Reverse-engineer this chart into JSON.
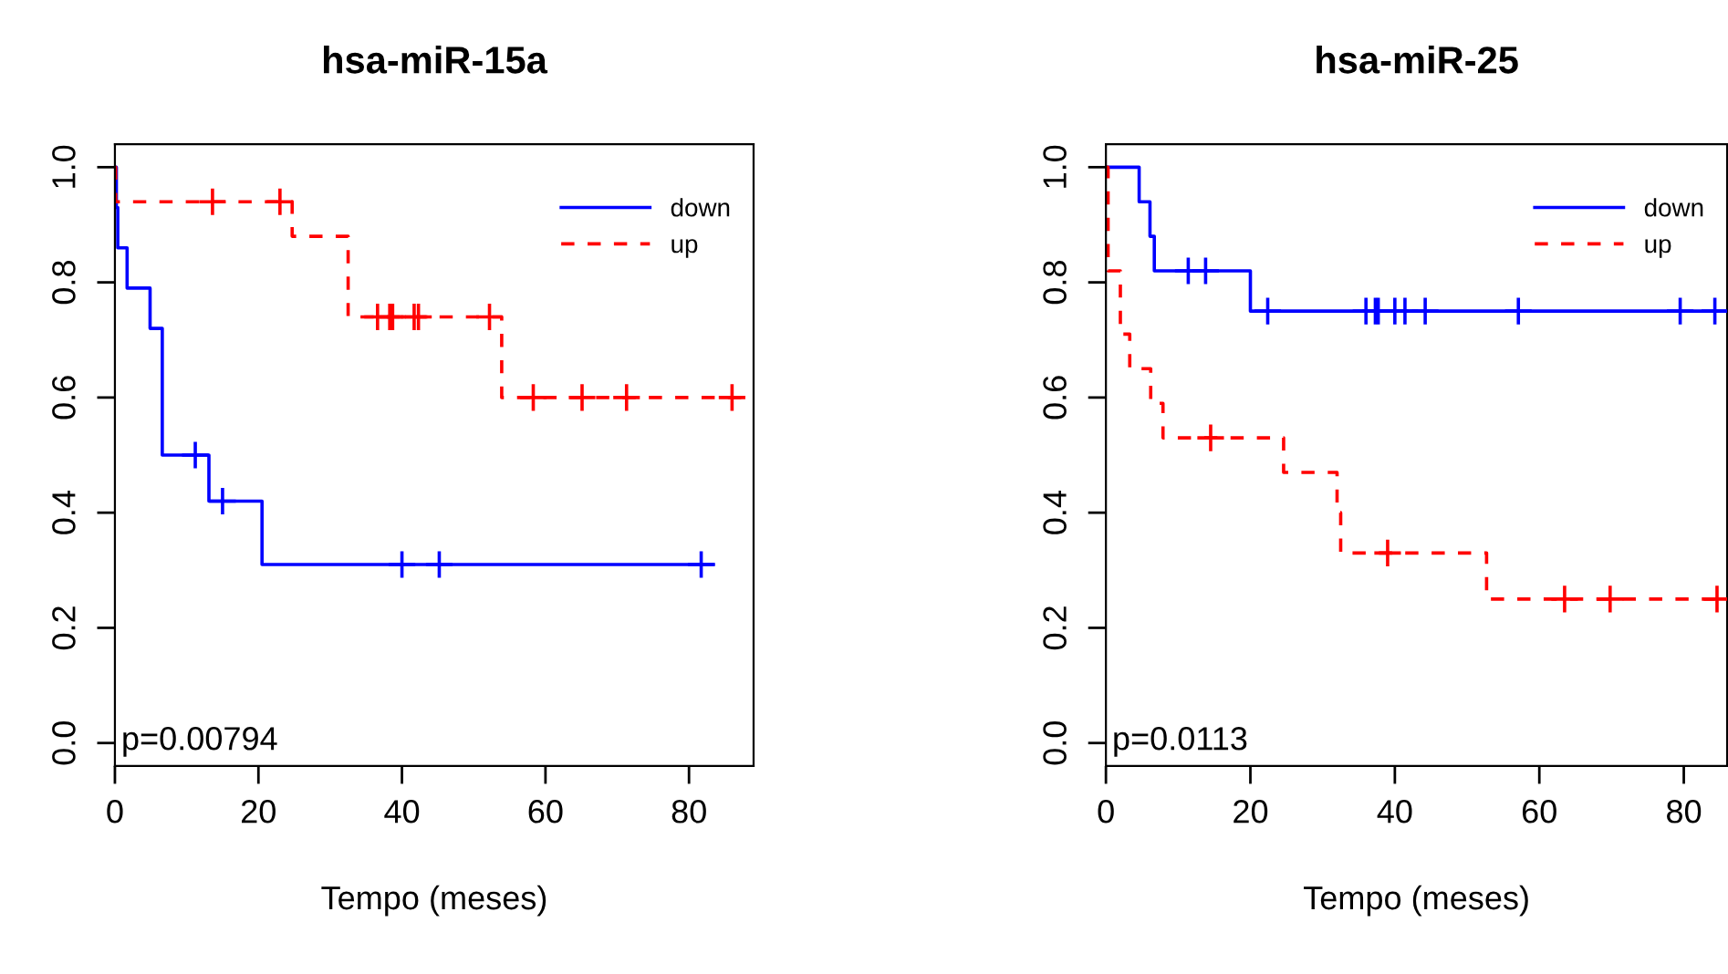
{
  "chart_data": [
    {
      "type": "step",
      "title": "hsa-miR-15a",
      "xlabel": "Tempo (meses)",
      "xlim": [
        0,
        89
      ],
      "ylim": [
        -0.04,
        1.04
      ],
      "xticks": [
        0,
        20,
        40,
        60,
        80
      ],
      "yticks": [
        {
          "value": 0,
          "label": "0.0"
        },
        {
          "value": 0.2,
          "label": "0.2"
        },
        {
          "value": 0.4,
          "label": "0.4"
        },
        {
          "value": 0.6,
          "label": "0.6"
        },
        {
          "value": 0.8,
          "label": "0.8"
        },
        {
          "value": 1,
          "label": "1.0"
        }
      ],
      "legend": "top right",
      "grid": false,
      "annotations": [
        "p=0.00794"
      ],
      "series": [
        {
          "name": "down",
          "color": "#0000ff",
          "line_style": "solid",
          "x": [
            0,
            0.2,
            0.4,
            1.7,
            4.9,
            6.6,
            13.1,
            20.5,
            83.4
          ],
          "values": [
            1,
            0.93,
            0.86,
            0.79,
            0.72,
            0.5,
            0.42,
            0.31,
            0.31
          ]
        },
        {
          "name": "up",
          "color": "#ff0000",
          "line_style": "dashed",
          "x": [
            0,
            0.1,
            24.7,
            32.5,
            53.9,
            87.7
          ],
          "values": [
            1,
            0.94,
            0.88,
            0.74,
            0.6,
            0.6
          ]
        },
        {
          "type": "scatter",
          "marker": "cross",
          "color": "#0000ff",
          "x": [
            11.2,
            15,
            40,
            45.2,
            81.7
          ],
          "values": [
            0.5,
            0.42,
            0.31,
            0.31,
            0.31
          ]
        },
        {
          "type": "scatter",
          "marker": "cross",
          "color": "#ff0000",
          "x": [
            13.6,
            23,
            36.6,
            38.3,
            38.7,
            41.7,
            42.3,
            52.2,
            58.3,
            65.1,
            71.3,
            86
          ],
          "values": [
            0.94,
            0.94,
            0.74,
            0.74,
            0.74,
            0.74,
            0.74,
            0.74,
            0.6,
            0.6,
            0.6,
            0.6
          ]
        }
      ]
    },
    {
      "type": "step",
      "title": "hsa-miR-25",
      "xlabel": "Tempo (meses)",
      "xlim": [
        0,
        86
      ],
      "ylim": [
        -0.04,
        1.04
      ],
      "xticks": [
        0,
        20,
        40,
        60,
        80
      ],
      "yticks": [
        {
          "value": 0,
          "label": "0.0"
        },
        {
          "value": 0.2,
          "label": "0.2"
        },
        {
          "value": 0.4,
          "label": "0.4"
        },
        {
          "value": 0.6,
          "label": "0.6"
        },
        {
          "value": 0.8,
          "label": "0.8"
        },
        {
          "value": 1,
          "label": "1.0"
        }
      ],
      "legend": "top right",
      "grid": false,
      "annotations": [
        "p=0.0113"
      ],
      "series": [
        {
          "name": "down",
          "color": "#0000ff",
          "line_style": "solid",
          "x": [
            0,
            4.6,
            6.1,
            6.7,
            20,
            86
          ],
          "values": [
            1,
            0.94,
            0.88,
            0.82,
            0.75,
            0.75
          ]
        },
        {
          "name": "up",
          "color": "#ff0000",
          "line_style": "dashed",
          "x": [
            0,
            0.3,
            2,
            3.3,
            6.2,
            7.9,
            24.6,
            32,
            32.5,
            52.7,
            86
          ],
          "values": [
            1,
            0.82,
            0.71,
            0.65,
            0.59,
            0.53,
            0.47,
            0.4,
            0.33,
            0.25,
            0.25
          ]
        },
        {
          "type": "scatter",
          "marker": "cross",
          "color": "#0000ff",
          "x": [
            11.4,
            13.8,
            22.4,
            36,
            37.3,
            37.7,
            40,
            40.9,
            41.4,
            44.2,
            57.1,
            79.5,
            84.3
          ],
          "values": [
            0.82,
            0.82,
            0.75,
            0.75,
            0.75,
            0.75,
            0.75,
            null,
            0.75,
            0.75,
            0.75,
            0.75,
            0.75
          ]
        },
        {
          "type": "scatter",
          "marker": "cross",
          "color": "#ff0000",
          "x": [
            14.5,
            39,
            63.5,
            69.8,
            84.6
          ],
          "values": [
            0.53,
            0.33,
            0.25,
            0.25,
            0.25
          ]
        }
      ]
    }
  ]
}
